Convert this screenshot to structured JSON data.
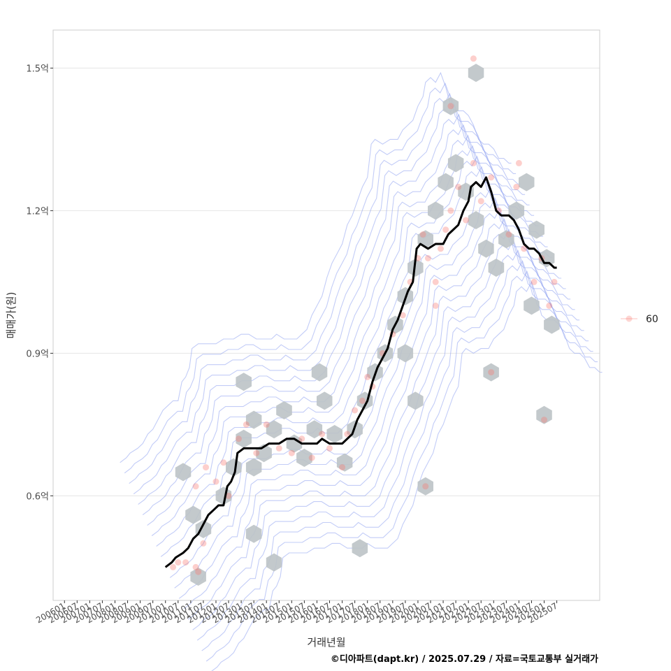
{
  "chart_data": {
    "type": "scatter",
    "xlabel": "거래년월",
    "ylabel": "매매가(원)",
    "caption": "©디아파트(dapt.kr) / 2025.07.29 / 자료=국토교통부 실거래가",
    "y_unit_label": "억",
    "ylim": [
      0.38,
      1.58
    ],
    "y_ticks": [
      {
        "value": 0.6,
        "label": "0.6억"
      },
      {
        "value": 0.9,
        "label": "0.9억"
      },
      {
        "value": 1.2,
        "label": "1.2억"
      },
      {
        "value": 1.5,
        "label": "1.5억"
      }
    ],
    "xlim": [
      2005.55,
      2027.2
    ],
    "x_ticks": [
      {
        "value": 2006.0,
        "label": "200601"
      },
      {
        "value": 2006.5,
        "label": "200607"
      },
      {
        "value": 2007.0,
        "label": "200701"
      },
      {
        "value": 2007.5,
        "label": "200707"
      },
      {
        "value": 2008.0,
        "label": "200801"
      },
      {
        "value": 2008.5,
        "label": "200807"
      },
      {
        "value": 2009.0,
        "label": "200901"
      },
      {
        "value": 2009.5,
        "label": "200907"
      },
      {
        "value": 2010.0,
        "label": "201001"
      },
      {
        "value": 2010.5,
        "label": "201007"
      },
      {
        "value": 2011.0,
        "label": "201101"
      },
      {
        "value": 2011.5,
        "label": "201107"
      },
      {
        "value": 2012.0,
        "label": "201201"
      },
      {
        "value": 2012.5,
        "label": "201207"
      },
      {
        "value": 2013.0,
        "label": "201301"
      },
      {
        "value": 2013.5,
        "label": "201307"
      },
      {
        "value": 2014.0,
        "label": "201401"
      },
      {
        "value": 2014.5,
        "label": "201407"
      },
      {
        "value": 2015.0,
        "label": "201501"
      },
      {
        "value": 2015.5,
        "label": "201507"
      },
      {
        "value": 2016.0,
        "label": "201601"
      },
      {
        "value": 2016.5,
        "label": "201607"
      },
      {
        "value": 2017.0,
        "label": "201701"
      },
      {
        "value": 2017.5,
        "label": "201707"
      },
      {
        "value": 2018.0,
        "label": "201801"
      },
      {
        "value": 2018.5,
        "label": "201807"
      },
      {
        "value": 2019.0,
        "label": "201901"
      },
      {
        "value": 2019.5,
        "label": "201907"
      },
      {
        "value": 2020.0,
        "label": "202001"
      },
      {
        "value": 2020.5,
        "label": "202007"
      },
      {
        "value": 2021.0,
        "label": "202101"
      },
      {
        "value": 2021.5,
        "label": "202107"
      },
      {
        "value": 2022.0,
        "label": "202201"
      },
      {
        "value": 2022.5,
        "label": "202207"
      },
      {
        "value": 2023.0,
        "label": "202301"
      },
      {
        "value": 2023.5,
        "label": "202307"
      },
      {
        "value": 2024.0,
        "label": "202401"
      },
      {
        "value": 2024.5,
        "label": "202407"
      },
      {
        "value": 2025.0,
        "label": "202501"
      },
      {
        "value": 2025.5,
        "label": "202507"
      }
    ],
    "legend": {
      "position": "right",
      "entries": [
        {
          "label": "60",
          "color": "#F8766D"
        }
      ]
    },
    "colors": {
      "points": "#F8766D",
      "hexbin": "#BDC3C7",
      "hexbin_light": "#C6D9EC",
      "contour": "#8FA3F0",
      "trend": "#000000",
      "grid": "#E5E5E5",
      "panel_border": "#CCCCCC"
    },
    "trend_line": [
      [
        2010.0,
        0.45
      ],
      [
        2010.25,
        0.46
      ],
      [
        2010.4,
        0.47
      ],
      [
        2010.7,
        0.48
      ],
      [
        2010.9,
        0.49
      ],
      [
        2011.1,
        0.51
      ],
      [
        2011.3,
        0.52
      ],
      [
        2011.5,
        0.54
      ],
      [
        2011.7,
        0.56
      ],
      [
        2011.9,
        0.57
      ],
      [
        2012.1,
        0.58
      ],
      [
        2012.3,
        0.58
      ],
      [
        2012.45,
        0.62
      ],
      [
        2012.6,
        0.63
      ],
      [
        2012.75,
        0.65
      ],
      [
        2012.85,
        0.69
      ],
      [
        2013.1,
        0.7
      ],
      [
        2013.5,
        0.7
      ],
      [
        2013.8,
        0.7
      ],
      [
        2014.1,
        0.71
      ],
      [
        2014.5,
        0.71
      ],
      [
        2014.8,
        0.72
      ],
      [
        2015.1,
        0.72
      ],
      [
        2015.4,
        0.71
      ],
      [
        2015.7,
        0.71
      ],
      [
        2016.0,
        0.71
      ],
      [
        2016.2,
        0.72
      ],
      [
        2016.5,
        0.71
      ],
      [
        2016.8,
        0.71
      ],
      [
        2017.0,
        0.71
      ],
      [
        2017.2,
        0.72
      ],
      [
        2017.4,
        0.73
      ],
      [
        2017.6,
        0.76
      ],
      [
        2017.8,
        0.78
      ],
      [
        2018.0,
        0.8
      ],
      [
        2018.2,
        0.84
      ],
      [
        2018.4,
        0.87
      ],
      [
        2018.6,
        0.89
      ],
      [
        2018.8,
        0.91
      ],
      [
        2019.0,
        0.95
      ],
      [
        2019.2,
        0.97
      ],
      [
        2019.4,
        1.0
      ],
      [
        2019.6,
        1.03
      ],
      [
        2019.8,
        1.05
      ],
      [
        2019.95,
        1.12
      ],
      [
        2020.1,
        1.13
      ],
      [
        2020.4,
        1.12
      ],
      [
        2020.7,
        1.13
      ],
      [
        2021.0,
        1.13
      ],
      [
        2021.2,
        1.15
      ],
      [
        2021.4,
        1.16
      ],
      [
        2021.6,
        1.17
      ],
      [
        2021.8,
        1.2
      ],
      [
        2022.0,
        1.22
      ],
      [
        2022.1,
        1.25
      ],
      [
        2022.3,
        1.26
      ],
      [
        2022.5,
        1.25
      ],
      [
        2022.7,
        1.27
      ],
      [
        2022.9,
        1.24
      ],
      [
        2023.1,
        1.2
      ],
      [
        2023.3,
        1.19
      ],
      [
        2023.6,
        1.19
      ],
      [
        2023.8,
        1.18
      ],
      [
        2024.0,
        1.16
      ],
      [
        2024.2,
        1.13
      ],
      [
        2024.4,
        1.12
      ],
      [
        2024.6,
        1.12
      ],
      [
        2024.8,
        1.11
      ],
      [
        2025.0,
        1.09
      ],
      [
        2025.2,
        1.09
      ],
      [
        2025.4,
        1.08
      ],
      [
        2025.5,
        1.08
      ]
    ],
    "points_sample": [
      [
        2010.3,
        0.45
      ],
      [
        2010.5,
        0.46
      ],
      [
        2010.8,
        0.46
      ],
      [
        2011.2,
        0.45
      ],
      [
        2011.3,
        0.44
      ],
      [
        2011.5,
        0.5
      ],
      [
        2011.2,
        0.62
      ],
      [
        2011.6,
        0.66
      ],
      [
        2012.0,
        0.63
      ],
      [
        2012.3,
        0.67
      ],
      [
        2012.5,
        0.6
      ],
      [
        2012.9,
        0.72
      ],
      [
        2013.2,
        0.75
      ],
      [
        2013.6,
        0.69
      ],
      [
        2014.0,
        0.75
      ],
      [
        2014.5,
        0.7
      ],
      [
        2015.0,
        0.69
      ],
      [
        2015.4,
        0.72
      ],
      [
        2015.8,
        0.68
      ],
      [
        2016.2,
        0.73
      ],
      [
        2016.5,
        0.7
      ],
      [
        2017.0,
        0.66
      ],
      [
        2017.2,
        0.73
      ],
      [
        2017.5,
        0.78
      ],
      [
        2017.8,
        0.8
      ],
      [
        2018.0,
        0.85
      ],
      [
        2018.2,
        0.83
      ],
      [
        2018.6,
        0.9
      ],
      [
        2019.0,
        0.94
      ],
      [
        2019.4,
        0.98
      ],
      [
        2019.7,
        1.05
      ],
      [
        2020.0,
        1.1
      ],
      [
        2020.2,
        1.15
      ],
      [
        2020.4,
        1.1
      ],
      [
        2020.7,
        1.05
      ],
      [
        2020.9,
        1.12
      ],
      [
        2021.1,
        1.16
      ],
      [
        2021.3,
        1.2
      ],
      [
        2021.6,
        1.25
      ],
      [
        2021.9,
        1.18
      ],
      [
        2022.2,
        1.3
      ],
      [
        2022.5,
        1.22
      ],
      [
        2022.9,
        1.27
      ],
      [
        2023.2,
        1.2
      ],
      [
        2023.6,
        1.15
      ],
      [
        2023.9,
        1.25
      ],
      [
        2024.2,
        1.12
      ],
      [
        2024.6,
        1.05
      ],
      [
        2024.9,
        1.1
      ],
      [
        2025.2,
        1.0
      ],
      [
        2025.4,
        1.05
      ],
      [
        2022.2,
        1.52
      ],
      [
        2021.3,
        1.42
      ],
      [
        2020.7,
        1.0
      ],
      [
        2020.3,
        0.62
      ],
      [
        2022.9,
        0.86
      ],
      [
        2025.0,
        0.76
      ],
      [
        2024.0,
        1.3
      ]
    ],
    "hex_centers_sample": [
      [
        2010.7,
        0.65
      ],
      [
        2011.1,
        0.56
      ],
      [
        2011.5,
        0.53
      ],
      [
        2012.3,
        0.6
      ],
      [
        2012.7,
        0.66
      ],
      [
        2013.1,
        0.72
      ],
      [
        2013.5,
        0.76
      ],
      [
        2013.1,
        0.84
      ],
      [
        2013.5,
        0.66
      ],
      [
        2013.9,
        0.69
      ],
      [
        2014.3,
        0.74
      ],
      [
        2014.7,
        0.78
      ],
      [
        2015.1,
        0.71
      ],
      [
        2015.5,
        0.68
      ],
      [
        2015.9,
        0.74
      ],
      [
        2016.3,
        0.8
      ],
      [
        2016.7,
        0.73
      ],
      [
        2017.1,
        0.67
      ],
      [
        2017.5,
        0.74
      ],
      [
        2017.9,
        0.8
      ],
      [
        2018.3,
        0.86
      ],
      [
        2018.7,
        0.9
      ],
      [
        2019.1,
        0.96
      ],
      [
        2019.5,
        1.02
      ],
      [
        2019.9,
        1.08
      ],
      [
        2020.3,
        1.14
      ],
      [
        2020.7,
        1.2
      ],
      [
        2021.1,
        1.26
      ],
      [
        2021.5,
        1.3
      ],
      [
        2021.9,
        1.24
      ],
      [
        2022.3,
        1.18
      ],
      [
        2022.7,
        1.12
      ],
      [
        2023.1,
        1.08
      ],
      [
        2023.5,
        1.14
      ],
      [
        2023.9,
        1.2
      ],
      [
        2024.3,
        1.26
      ],
      [
        2024.7,
        1.16
      ],
      [
        2025.1,
        1.1
      ],
      [
        2025.3,
        0.96
      ],
      [
        2024.5,
        1.0
      ],
      [
        2022.3,
        1.49
      ],
      [
        2021.3,
        1.42
      ],
      [
        2020.3,
        0.62
      ],
      [
        2022.9,
        0.86
      ],
      [
        2019.5,
        0.9
      ],
      [
        2019.9,
        0.8
      ],
      [
        2025.0,
        0.77
      ],
      [
        2013.5,
        0.52
      ],
      [
        2014.3,
        0.46
      ],
      [
        2016.1,
        0.86
      ],
      [
        2017.7,
        0.49
      ],
      [
        2011.3,
        0.43
      ]
    ]
  }
}
